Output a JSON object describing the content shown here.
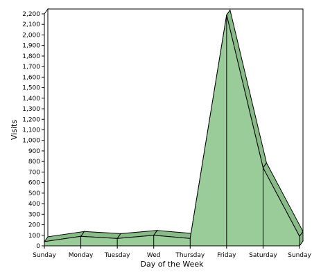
{
  "chart_data": {
    "type": "area",
    "title": "",
    "xlabel": "Day of the Week",
    "ylabel": "Visits",
    "categories": [
      "Sunday",
      "Monday",
      "Tuesday",
      "Wed",
      "Thursday",
      "Friday",
      "Saturday",
      "Sunday"
    ],
    "series": [
      {
        "values": [
          40,
          90,
          70,
          100,
          70,
          2190,
          740,
          90
        ]
      }
    ],
    "ylim": [
      0,
      2200
    ],
    "yticks": [
      "0",
      "100",
      "200",
      "300",
      "400",
      "500",
      "600",
      "700",
      "800",
      "900",
      "1,000",
      "1,100",
      "1,200",
      "1,300",
      "1,400",
      "1,500",
      "1,600",
      "1,700",
      "1,800",
      "1,900",
      "2,000",
      "2,100",
      "2,200"
    ],
    "grid": true,
    "legend": "none",
    "colors": {
      "fill": "#99cc99",
      "side": "#88bb88",
      "line": "#000000",
      "grid": "#808080",
      "wall": "#ffffff"
    }
  }
}
